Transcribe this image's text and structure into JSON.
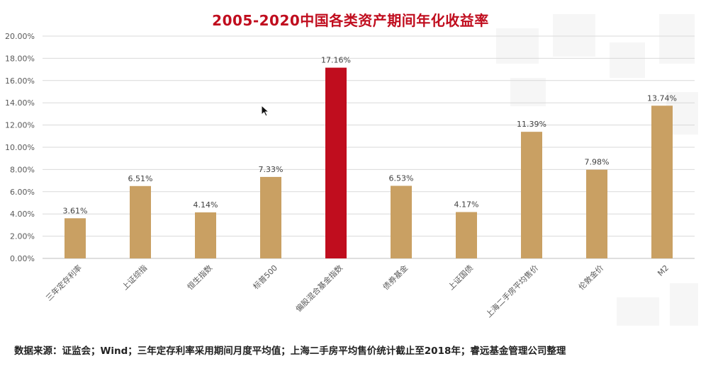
{
  "chart_data": {
    "type": "bar",
    "title": "2005-2020中国各类资产期间年化收益率",
    "categories": [
      "三年定存利率",
      "上证综指",
      "恒生指数",
      "标普500",
      "偏股混合基金指数",
      "债券基金",
      "上证国债",
      "上海二手房平均售价",
      "伦敦金价",
      "M2"
    ],
    "values": [
      3.61,
      6.51,
      4.14,
      7.33,
      17.16,
      6.53,
      4.17,
      11.39,
      7.98,
      13.74
    ],
    "data_labels": [
      "3.61%",
      "6.51%",
      "4.14%",
      "7.33%",
      "17.16%",
      "6.53%",
      "4.17%",
      "11.39%",
      "7.98%",
      "13.74%"
    ],
    "ylim": [
      0,
      20
    ],
    "yticks": [
      "0.00%",
      "2.00%",
      "4.00%",
      "6.00%",
      "8.00%",
      "10.00%",
      "12.00%",
      "14.00%",
      "16.00%",
      "18.00%",
      "20.00%"
    ],
    "xlabel": "",
    "ylabel": "",
    "grid": true,
    "legend": "none",
    "highlight_index": 4,
    "colors": {
      "bar": "#c9a063",
      "highlight": "#c00d1e",
      "grid": "#d9d9d9",
      "text": "#595959"
    }
  },
  "footer": {
    "source": "数据来源：证监会；Wind；三年定存利率采用期间月度平均值；上海二手房平均售价统计截止至2018年；睿远基金管理公司整理"
  }
}
